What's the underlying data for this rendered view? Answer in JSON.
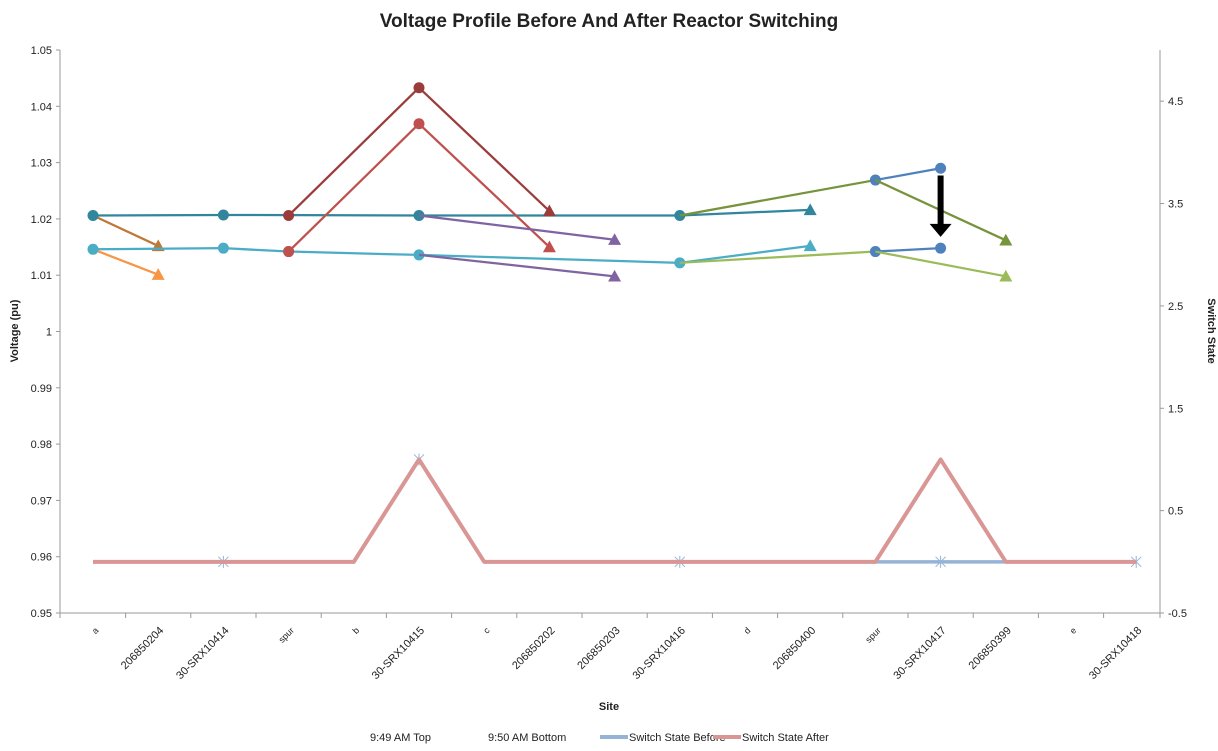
{
  "chart_data": {
    "type": "line",
    "title": "Voltage Profile Before And After Reactor Switching",
    "xlabel": "Site",
    "ylabel": "Voltage (pu)",
    "y2label": "Switch State",
    "ylim": [
      0.95,
      1.05
    ],
    "y2lim": [
      -0.5,
      5
    ],
    "y_ticks": [
      "0.95",
      "0.96",
      "0.97",
      "0.98",
      "0.99",
      "1",
      "1.01",
      "1.02",
      "1.03",
      "1.04",
      "1.05"
    ],
    "y2_ticks": [
      "-0.5",
      "0.5",
      "1.5",
      "2.5",
      "3.5",
      "4.5"
    ],
    "categories": [
      "a",
      "206850204",
      "30-SRX10414",
      "spur",
      "b",
      "30-SRX10415",
      "c",
      "206850202",
      "206850203",
      "30-SRX10416",
      "d",
      "206850400",
      "spur",
      "30-SRX10417",
      "206850399",
      "e",
      "30-SRX10418"
    ],
    "series": [
      {
        "color": "#C07838",
        "marker": "triangle",
        "axis": "left",
        "points": [
          [
            0,
            1.0206
          ],
          [
            1,
            1.0152
          ]
        ]
      },
      {
        "color": "#F79646",
        "marker": "triangle",
        "axis": "left",
        "points": [
          [
            0,
            1.0146
          ],
          [
            1,
            1.0101
          ]
        ]
      },
      {
        "color": "#31859C",
        "marker": "circle",
        "axis": "left",
        "points": [
          [
            0,
            1.0206
          ],
          [
            2,
            1.0207
          ],
          [
            5,
            1.0206
          ],
          [
            9,
            1.0206
          ]
        ]
      },
      {
        "color": "#4BACC6",
        "marker": "circle",
        "axis": "left",
        "points": [
          [
            0,
            1.0146
          ],
          [
            2,
            1.0148
          ],
          [
            3,
            1.0142
          ],
          [
            5,
            1.0136
          ],
          [
            9,
            1.0122
          ]
        ]
      },
      {
        "color": "#9B3C3A",
        "marker": "circle",
        "axis": "left",
        "points": [
          [
            3,
            1.0206
          ],
          [
            5,
            1.0433
          ]
        ]
      },
      {
        "color": "#9B3C3A",
        "marker": "triangle",
        "axis": "left",
        "points": [
          [
            5,
            1.0433
          ],
          [
            7,
            1.0214
          ]
        ]
      },
      {
        "color": "#C0504D",
        "marker": "circle",
        "axis": "left",
        "points": [
          [
            3,
            1.0142
          ],
          [
            5,
            1.0369
          ]
        ]
      },
      {
        "color": "#C0504D",
        "marker": "triangle",
        "axis": "left",
        "points": [
          [
            5,
            1.0369
          ],
          [
            7,
            1.015
          ]
        ]
      },
      {
        "color": "#8064A2",
        "marker": "triangle",
        "axis": "left",
        "points": [
          [
            5,
            1.0206
          ],
          [
            8,
            1.0163
          ]
        ]
      },
      {
        "color": "#8064A2",
        "marker": "triangle",
        "axis": "left",
        "points": [
          [
            5,
            1.0136
          ],
          [
            8,
            1.0098
          ]
        ]
      },
      {
        "color": "#31859C",
        "marker": "triangle",
        "axis": "left",
        "points": [
          [
            9,
            1.0206
          ],
          [
            11,
            1.0216
          ]
        ]
      },
      {
        "color": "#4BACC6",
        "marker": "triangle",
        "axis": "left",
        "points": [
          [
            9,
            1.0122
          ],
          [
            11,
            1.0152
          ]
        ]
      },
      {
        "color": "#77933C",
        "marker": "none",
        "axis": "left",
        "points": [
          [
            9,
            1.0206
          ],
          [
            12,
            1.0269
          ]
        ]
      },
      {
        "color": "#4F81BD",
        "marker": "circle",
        "axis": "left",
        "points": [
          [
            12,
            1.0269
          ],
          [
            13,
            1.029
          ]
        ]
      },
      {
        "color": "#77933C",
        "marker": "triangle",
        "axis": "left",
        "points": [
          [
            12,
            1.0269
          ],
          [
            14,
            1.0162
          ]
        ]
      },
      {
        "color": "#9BBB59",
        "marker": "none",
        "axis": "left",
        "points": [
          [
            9,
            1.0122
          ],
          [
            12,
            1.0142
          ]
        ]
      },
      {
        "color": "#4F81BD",
        "marker": "circle",
        "axis": "left",
        "points": [
          [
            12,
            1.0142
          ],
          [
            13,
            1.0148
          ]
        ]
      },
      {
        "color": "#9BBB59",
        "marker": "triangle",
        "axis": "left",
        "points": [
          [
            12,
            1.0142
          ],
          [
            14,
            1.0098
          ]
        ]
      },
      {
        "name": "Switch State Before",
        "color": "#95B3D7",
        "marker": "x",
        "axis": "right",
        "width": 3.5,
        "points": [
          [
            0,
            0
          ],
          [
            2,
            0
          ],
          [
            4,
            0
          ],
          [
            5,
            1
          ],
          [
            6,
            0
          ],
          [
            9,
            0
          ],
          [
            12,
            0
          ],
          [
            13,
            0
          ],
          [
            14,
            0
          ],
          [
            16,
            0
          ]
        ],
        "marker_indices": [
          2,
          5,
          9,
          13,
          16
        ]
      },
      {
        "name": "Switch State After",
        "color": "#D99694",
        "marker": "none",
        "axis": "right",
        "width": 4,
        "points": [
          [
            0,
            0
          ],
          [
            4,
            0
          ],
          [
            5,
            1
          ],
          [
            6,
            0
          ],
          [
            12,
            0
          ],
          [
            13,
            1
          ],
          [
            14,
            0
          ],
          [
            16,
            0
          ]
        ]
      }
    ],
    "annotations": [
      {
        "type": "arrow",
        "x": 13,
        "from": 1.0277,
        "to": 1.0168,
        "color": "#000000"
      }
    ],
    "legend": {
      "position": "bottom",
      "entries": [
        {
          "label": "9:49 AM Top",
          "color": "",
          "style": "none"
        },
        {
          "label": "9:50 AM Bottom",
          "color": "",
          "style": "none"
        },
        {
          "label": "Switch State Before",
          "color": "#95B3D7",
          "style": "line"
        },
        {
          "label": "Switch State After",
          "color": "#D99694",
          "style": "line"
        }
      ]
    }
  }
}
